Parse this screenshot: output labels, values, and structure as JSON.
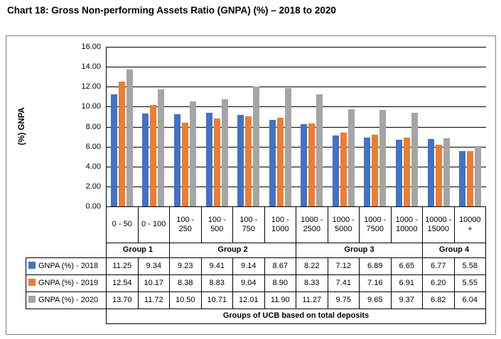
{
  "title": "Chart 18: Gross Non-performing Assets Ratio (GNPA) (%) – 2018 to 2020",
  "chart_data": {
    "type": "bar",
    "title": "Chart 18: Gross Non-performing Assets Ratio (GNPA) (%) – 2018 to 2020",
    "ylabel": "(%) GNPA",
    "xlabel": "Groups of UCB based on total deposits",
    "ylim": [
      0,
      16
    ],
    "ytick_step": 2,
    "ytick_labels": [
      "0.00",
      "2.00",
      "4.00",
      "6.00",
      "8.00",
      "10.00",
      "12.00",
      "14.00",
      "16.00"
    ],
    "grid": true,
    "legend_position": "data-table-left",
    "categories": [
      "0 - 50",
      "0 - 100",
      "100 - 250",
      "100 - 500",
      "100 - 750",
      "100 - 1000",
      "1000 - 2500",
      "1000 - 5000",
      "1000 - 7500",
      "1000 - 10000",
      "10000 - 15000",
      "10000 +"
    ],
    "group_spans": [
      {
        "label": "Group 1",
        "span": 2
      },
      {
        "label": "Group 2",
        "span": 4
      },
      {
        "label": "Group 3",
        "span": 4
      },
      {
        "label": "Group 4",
        "span": 2
      }
    ],
    "series": [
      {
        "name": "GNPA (%) - 2018",
        "color": "#4472C4",
        "values": [
          11.25,
          9.34,
          9.23,
          9.41,
          9.14,
          8.67,
          8.22,
          7.12,
          6.89,
          6.65,
          6.77,
          5.58
        ]
      },
      {
        "name": "GNPA (%) - 2019",
        "color": "#ED7D31",
        "values": [
          12.54,
          10.17,
          8.38,
          8.83,
          9.04,
          8.9,
          8.33,
          7.41,
          7.16,
          6.91,
          6.2,
          5.55
        ]
      },
      {
        "name": "GNPA (%) - 2020",
        "color": "#A5A5A5",
        "values": [
          13.7,
          11.72,
          10.5,
          10.71,
          12.01,
          11.9,
          11.27,
          9.75,
          9.65,
          9.37,
          6.82,
          6.04
        ]
      }
    ]
  }
}
